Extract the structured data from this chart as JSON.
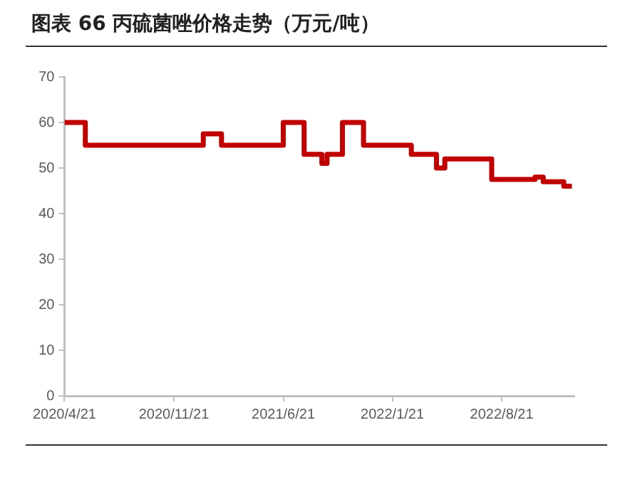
{
  "chart_data": {
    "type": "step",
    "title": "图表 66 丙硫菌唑价格走势（万元/吨）",
    "x": [
      "2020-04-21",
      "2020-06-01",
      "2021-01-18",
      "2021-02-21",
      "2021-06-21",
      "2021-08-01",
      "2021-09-05",
      "2021-09-15",
      "2021-10-15",
      "2021-11-25",
      "2022-02-25",
      "2022-04-15",
      "2022-05-01",
      "2022-08-01",
      "2022-10-25",
      "2022-11-10",
      "2022-12-20",
      "2023-01-05"
    ],
    "series": [
      {
        "color": "#c00000",
        "values": [
          60,
          55,
          57.5,
          55,
          60,
          53,
          51,
          53,
          60,
          55,
          53,
          50,
          52,
          47.5,
          48,
          47,
          46,
          46
        ]
      }
    ],
    "xlim": [
      "2020-04-21",
      "2023-01-10"
    ],
    "xticks": [
      {
        "value": "2020-04-21",
        "label": "2020/4/21"
      },
      {
        "value": "2020-11-21",
        "label": "2020/11/21"
      },
      {
        "value": "2021-06-21",
        "label": "2021/6/21"
      },
      {
        "value": "2022-01-21",
        "label": "2022/1/21"
      },
      {
        "value": "2022-08-21",
        "label": "2022/8/21"
      }
    ],
    "ylim": [
      0,
      70
    ],
    "yticks": [
      0,
      10,
      20,
      30,
      40,
      50,
      60,
      70
    ],
    "grid": false,
    "legend": false,
    "marker": "none",
    "line_style": "solid"
  }
}
